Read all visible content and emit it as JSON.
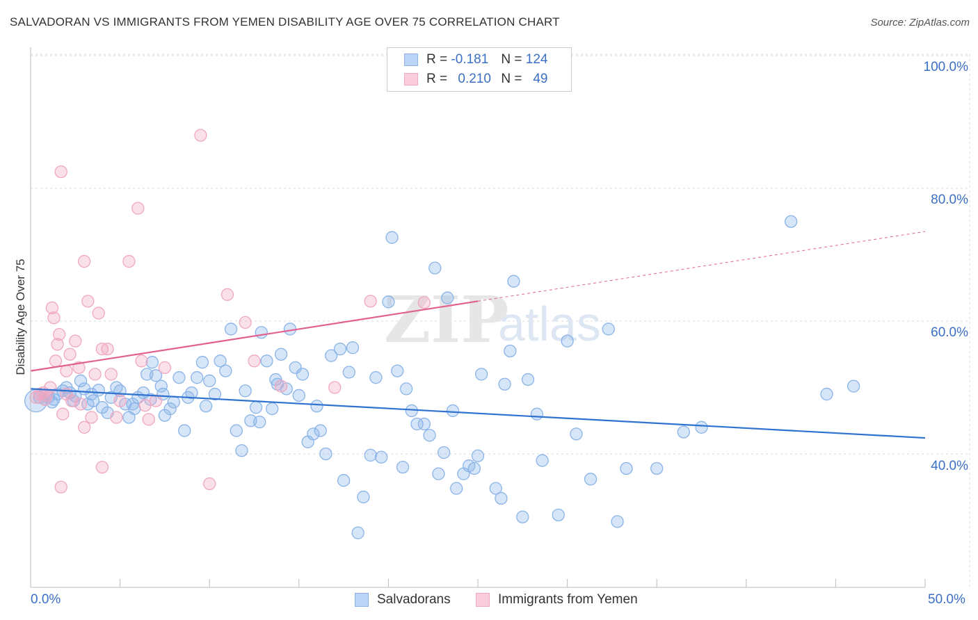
{
  "chart_data": {
    "type": "scatter",
    "title": "SALVADORAN VS IMMIGRANTS FROM YEMEN DISABILITY AGE OVER 75 CORRELATION CHART",
    "source": "Source: ZipAtlas.com",
    "xlabel": "",
    "ylabel": "Disability Age Over 75",
    "xlim": [
      0,
      50
    ],
    "ylim": [
      20,
      102
    ],
    "x_tick_labels": [
      "0.0%",
      "50.0%"
    ],
    "y_ticks": [
      40,
      60,
      80,
      100
    ],
    "y_tick_labels": [
      "40.0%",
      "60.0%",
      "80.0%",
      "100.0%"
    ],
    "legend": {
      "r_label": "R =",
      "n_label": "N =",
      "rows": [
        {
          "r": "-0.181",
          "n": "124"
        },
        {
          "r": "0.210",
          "n": "49"
        }
      ]
    },
    "watermark": {
      "zip": "ZIP",
      "atlas": "atlas"
    },
    "series": [
      {
        "name": "Salvadorans",
        "color": "#8ab4e8",
        "line_color": "#2f72d0",
        "trend": {
          "x1": 0,
          "y1": 49.8,
          "x2": 50,
          "y2": 42.4,
          "dashed_from": null
        },
        "points": [
          [
            0.3,
            48
          ],
          [
            0.5,
            48.5
          ],
          [
            0.8,
            48.2
          ],
          [
            1.0,
            48.6
          ],
          [
            1.3,
            48.2
          ],
          [
            1.5,
            49
          ],
          [
            1.8,
            49.5
          ],
          [
            2.0,
            50
          ],
          [
            2.2,
            49.2
          ],
          [
            2.5,
            48.7
          ],
          [
            2.8,
            51
          ],
          [
            3.0,
            49.8
          ],
          [
            3.2,
            47.5
          ],
          [
            3.5,
            48
          ],
          [
            3.8,
            49.6
          ],
          [
            4.0,
            47
          ],
          [
            4.3,
            46.2
          ],
          [
            4.5,
            48.5
          ],
          [
            4.8,
            50
          ],
          [
            5.0,
            49.5
          ],
          [
            5.3,
            47.5
          ],
          [
            5.5,
            45.5
          ],
          [
            5.8,
            46.8
          ],
          [
            6.0,
            48.5
          ],
          [
            6.3,
            49.2
          ],
          [
            6.5,
            52
          ],
          [
            6.8,
            53.8
          ],
          [
            7.0,
            51.8
          ],
          [
            7.3,
            50.2
          ],
          [
            7.5,
            45.8
          ],
          [
            7.8,
            46.8
          ],
          [
            8.0,
            47.8
          ],
          [
            8.3,
            51.5
          ],
          [
            8.6,
            43.5
          ],
          [
            9.0,
            49.2
          ],
          [
            9.3,
            51.5
          ],
          [
            9.6,
            53.8
          ],
          [
            10.0,
            51
          ],
          [
            10.3,
            49
          ],
          [
            10.6,
            54
          ],
          [
            10.9,
            52.5
          ],
          [
            11.2,
            58.8
          ],
          [
            11.5,
            43.5
          ],
          [
            11.8,
            40.5
          ],
          [
            12.0,
            49.5
          ],
          [
            12.3,
            45
          ],
          [
            12.6,
            47
          ],
          [
            12.9,
            58.3
          ],
          [
            13.2,
            54
          ],
          [
            13.5,
            46.8
          ],
          [
            13.7,
            51.2
          ],
          [
            14.0,
            55
          ],
          [
            14.3,
            49.8
          ],
          [
            14.5,
            58.8
          ],
          [
            14.8,
            53
          ],
          [
            15.2,
            52
          ],
          [
            15.5,
            41.8
          ],
          [
            15.8,
            43
          ],
          [
            16.2,
            43.5
          ],
          [
            16.5,
            40
          ],
          [
            16.8,
            54.8
          ],
          [
            17.3,
            55.8
          ],
          [
            17.5,
            36
          ],
          [
            17.8,
            52.3
          ],
          [
            18.0,
            56
          ],
          [
            18.3,
            28.1
          ],
          [
            18.6,
            33.5
          ],
          [
            19.0,
            39.8
          ],
          [
            19.3,
            51.5
          ],
          [
            19.6,
            39.5
          ],
          [
            20.0,
            62.9
          ],
          [
            20.2,
            72.6
          ],
          [
            20.5,
            52.5
          ],
          [
            20.8,
            38
          ],
          [
            21.0,
            49.8
          ],
          [
            21.3,
            46.5
          ],
          [
            21.6,
            44.5
          ],
          [
            22.0,
            44.5
          ],
          [
            22.3,
            42.8
          ],
          [
            22.6,
            68
          ],
          [
            22.8,
            37
          ],
          [
            23.1,
            40.2
          ],
          [
            23.3,
            63.5
          ],
          [
            23.6,
            46.5
          ],
          [
            23.8,
            34.8
          ],
          [
            24.2,
            37
          ],
          [
            24.5,
            38.2
          ],
          [
            24.8,
            37.8
          ],
          [
            25.0,
            39.7
          ],
          [
            25.2,
            52
          ],
          [
            26.0,
            34.8
          ],
          [
            26.3,
            33.3
          ],
          [
            26.5,
            50.5
          ],
          [
            26.8,
            55.5
          ],
          [
            27.0,
            66
          ],
          [
            27.5,
            30.5
          ],
          [
            27.8,
            51.2
          ],
          [
            28.3,
            46
          ],
          [
            28.6,
            39
          ],
          [
            29.5,
            30.8
          ],
          [
            30.0,
            57
          ],
          [
            30.5,
            43
          ],
          [
            31.3,
            36.2
          ],
          [
            32.3,
            58.8
          ],
          [
            32.8,
            29.8
          ],
          [
            33.3,
            37.8
          ],
          [
            35.0,
            37.8
          ],
          [
            36.5,
            43.3
          ],
          [
            37.5,
            44
          ],
          [
            42.5,
            75
          ],
          [
            44.5,
            49
          ],
          [
            46.0,
            50.2
          ],
          [
            1.2,
            47.8
          ],
          [
            2.4,
            48
          ],
          [
            3.4,
            49
          ],
          [
            5.7,
            47.5
          ],
          [
            6.7,
            48.2
          ],
          [
            7.4,
            49
          ],
          [
            8.8,
            48.5
          ],
          [
            9.8,
            47.2
          ],
          [
            12.8,
            44.8
          ],
          [
            13.8,
            50.5
          ],
          [
            15.0,
            48.8
          ],
          [
            16.0,
            47.2
          ]
        ],
        "sizes": {
          "0": 16
        }
      },
      {
        "name": "Immigrants from Yemen",
        "color": "#f0a7c0",
        "line_color": "#e2608e",
        "trend": {
          "x1": 0,
          "y1": 52.5,
          "x2": 50,
          "y2": 73.5,
          "dashed_from": 25
        },
        "points": [
          [
            0.3,
            48.5
          ],
          [
            0.5,
            49
          ],
          [
            0.7,
            49.2
          ],
          [
            0.9,
            48.8
          ],
          [
            1.1,
            50
          ],
          [
            1.2,
            62
          ],
          [
            1.3,
            60.5
          ],
          [
            1.4,
            54
          ],
          [
            1.5,
            56.5
          ],
          [
            1.6,
            58
          ],
          [
            1.7,
            35
          ],
          [
            1.8,
            46
          ],
          [
            2.0,
            52.5
          ],
          [
            2.2,
            55
          ],
          [
            2.3,
            48
          ],
          [
            2.5,
            57
          ],
          [
            2.7,
            53
          ],
          [
            2.8,
            47.5
          ],
          [
            3.0,
            44
          ],
          [
            3.2,
            63
          ],
          [
            3.4,
            45.5
          ],
          [
            3.6,
            52
          ],
          [
            3.8,
            61.2
          ],
          [
            4.0,
            55.8
          ],
          [
            4.3,
            55.8
          ],
          [
            4.5,
            52
          ],
          [
            4.8,
            45.5
          ],
          [
            5.0,
            48
          ],
          [
            5.5,
            69
          ],
          [
            6.0,
            77
          ],
          [
            6.2,
            54
          ],
          [
            6.4,
            47.3
          ],
          [
            6.6,
            45.2
          ],
          [
            7.0,
            48
          ],
          [
            7.5,
            53
          ],
          [
            9.5,
            88
          ],
          [
            10.0,
            35.5
          ],
          [
            11.0,
            64
          ],
          [
            12.0,
            59.8
          ],
          [
            12.5,
            54
          ],
          [
            14.0,
            50.2
          ],
          [
            17.0,
            50
          ],
          [
            19.0,
            63
          ],
          [
            22.0,
            62.8
          ],
          [
            1.7,
            82.5
          ],
          [
            3.0,
            69
          ],
          [
            4.0,
            38
          ],
          [
            0.8,
            48.2
          ],
          [
            2.0,
            49
          ]
        ]
      }
    ]
  }
}
